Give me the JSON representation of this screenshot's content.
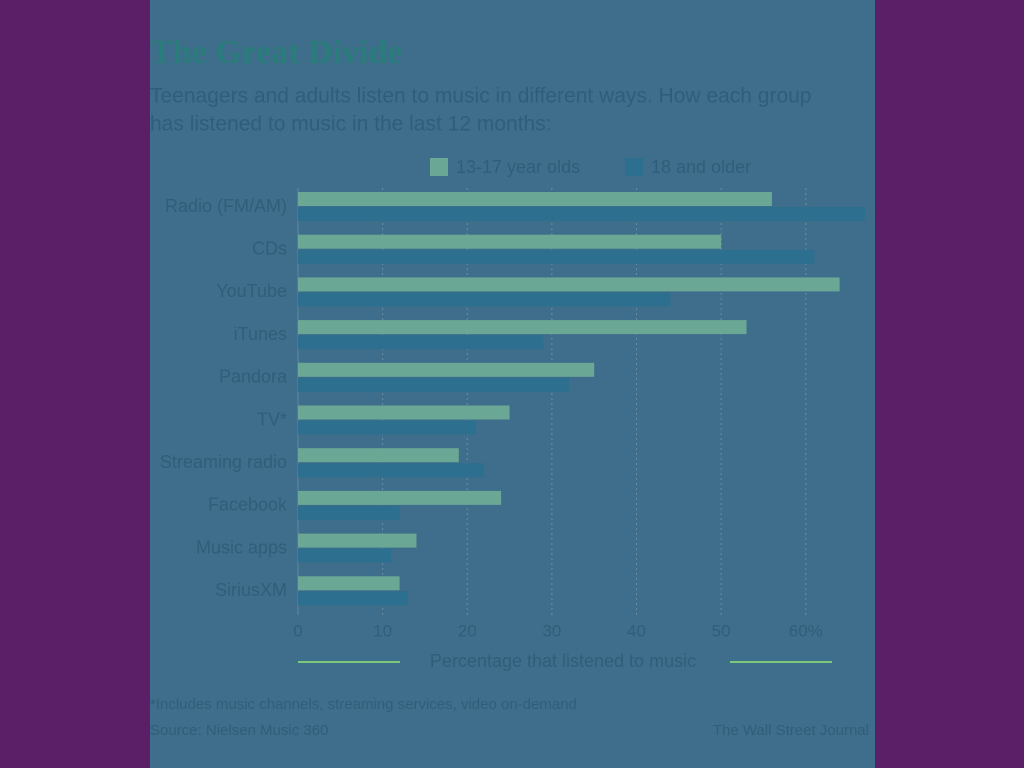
{
  "chart_data": {
    "type": "hbar",
    "title": "The Great Divide",
    "subtitle": [
      "Teenagers and adults listen to music in different ways. How each group",
      "has listened to music in the last 12 months:"
    ],
    "categories": [
      "Radio (FM/AM)",
      "CDs",
      "YouTube",
      "iTunes",
      "Pandora",
      "TV*",
      "Streaming radio",
      "Facebook",
      "Music apps",
      "SiriusXM"
    ],
    "series": [
      {
        "name": "13-17 year olds",
        "color": "#6aa895",
        "values": [
          56,
          50,
          64,
          53,
          35,
          25,
          19,
          24,
          14,
          12
        ]
      },
      {
        "name": "18 and older",
        "color": "#2c6f8e",
        "values": [
          67,
          61,
          44,
          29,
          32,
          21,
          22,
          12,
          11,
          13
        ]
      }
    ],
    "xlim": [
      0,
      67
    ],
    "xticks": [
      0,
      10,
      20,
      30,
      40,
      50,
      {
        "value": 60,
        "label": "60%"
      }
    ],
    "grid": true,
    "x_label": "Percentage that listened to music",
    "footnote": "*Includes music channels, streaming services, video on-demand",
    "source": "Source: Nielsen Music 360",
    "credit": "The Wall Street Journal"
  }
}
